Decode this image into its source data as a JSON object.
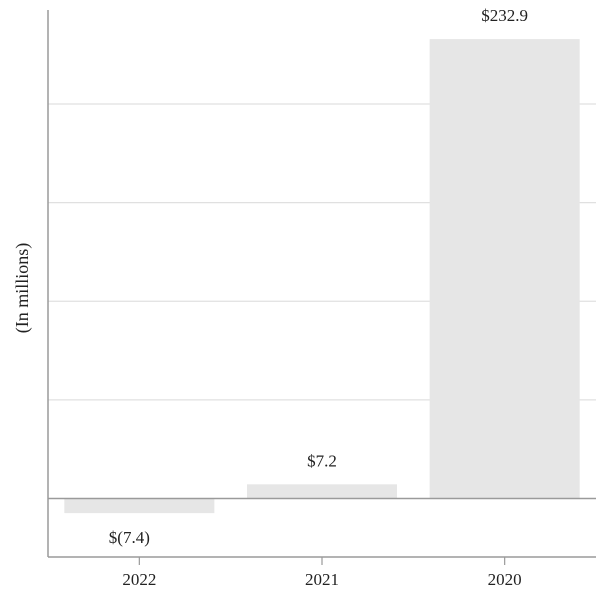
{
  "chart_data": {
    "type": "bar",
    "categories": [
      "2022",
      "2021",
      "2020"
    ],
    "values": [
      -7.4,
      7.2,
      232.9
    ],
    "data_labels": [
      "$(7.4)",
      "$7.2",
      "$232.9"
    ],
    "title": "",
    "xlabel": "",
    "ylabel": "(In millions)",
    "ylim": [
      -35,
      265
    ],
    "y_gridlines": [
      0,
      50,
      100,
      150,
      200
    ],
    "grid": true,
    "y_tick_labels_shown": false,
    "colors": {
      "bar": "#e6e6e6",
      "grid": "#e0e0e0",
      "axis": "#9a9a9a",
      "text": "#222222"
    }
  }
}
